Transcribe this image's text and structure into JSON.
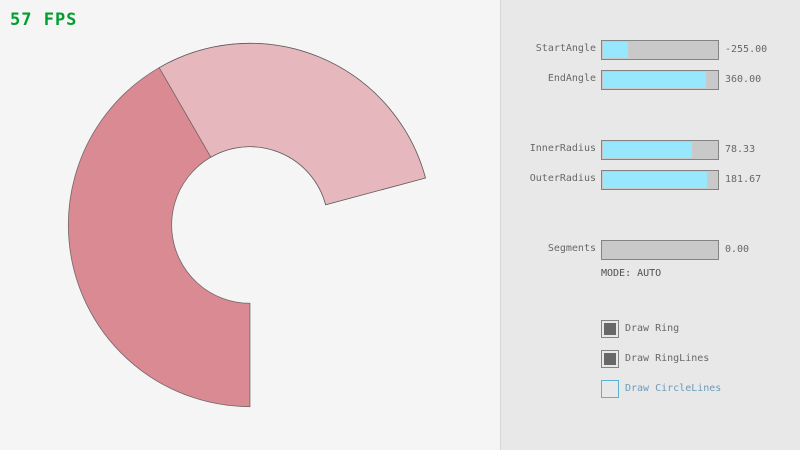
{
  "fps_label": "57 FPS",
  "ring": {
    "center_angle_note": "",
    "start_angle": -255,
    "end_angle": 360,
    "inner_radius": 78.33,
    "outer_radius": 181.67,
    "fill_color_overlap": "#da8a93",
    "fill_color_single": "#e6b7bd",
    "line_color": "#444444"
  },
  "sliders": [
    {
      "label": "StartAngle",
      "value": "-255.00",
      "fill": 0.217
    },
    {
      "label": "EndAngle",
      "value": "360.00",
      "fill": 0.9
    },
    {
      "label": "InnerRadius",
      "value": "78.33",
      "fill": 0.783
    },
    {
      "label": "OuterRadius",
      "value": "181.67",
      "fill": 0.908
    },
    {
      "label": "Segments",
      "value": "0.00",
      "fill": 0
    }
  ],
  "mode_label": "MODE: AUTO",
  "checkboxes": [
    {
      "label": "Draw Ring",
      "checked": true
    },
    {
      "label": "Draw RingLines",
      "checked": true
    },
    {
      "label": "Draw CircleLines",
      "checked": false
    }
  ],
  "colors": {
    "accent": "#97e8ff",
    "fps": "#009e2f",
    "focus": "#5bb2d9"
  }
}
